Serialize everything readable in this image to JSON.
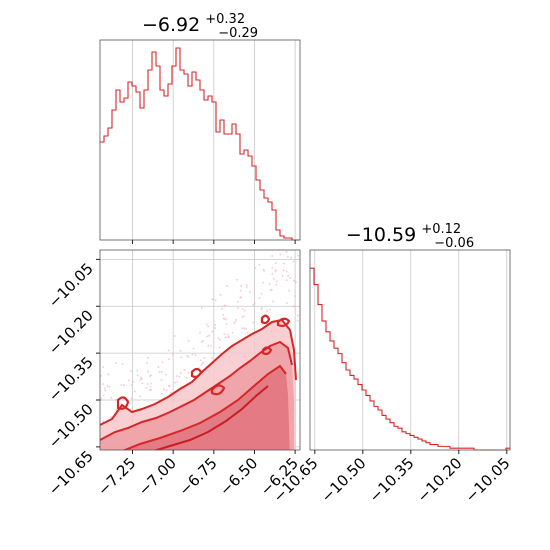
{
  "chart_data": [
    {
      "type": "histogram",
      "panel": "marginal-x",
      "title": {
        "main": "−6.92",
        "sup": "+0.32",
        "sub": "−0.29"
      },
      "xlim": [
        -7.45,
        -6.22
      ],
      "x_ticks": [
        -7.25,
        -7.0,
        -6.75,
        -6.5,
        -6.25
      ],
      "x_tick_labels": [
        "−7.25",
        "−7.00",
        "−6.75",
        "−6.50",
        "−6.25"
      ],
      "bin_start": -7.45,
      "bin_width": 0.0246,
      "counts": [
        49,
        52,
        56,
        65,
        75,
        69,
        71,
        79,
        77,
        74,
        66,
        75,
        85,
        94,
        87,
        75,
        72,
        78,
        87,
        96,
        85,
        83,
        77,
        84,
        80,
        75,
        70,
        72,
        69,
        54,
        60,
        53,
        53,
        58,
        53,
        43,
        45,
        42,
        37,
        30,
        25,
        21,
        19,
        15,
        5,
        2,
        1,
        1,
        0,
        0
      ],
      "ylim": [
        0,
        100
      ],
      "color": "#d62728"
    },
    {
      "type": "contour",
      "panel": "joint",
      "xlim": [
        -7.45,
        -6.22
      ],
      "ylim": [
        -10.66,
        -10.02
      ],
      "x_ticks": [
        -7.25,
        -7.0,
        -6.75,
        -6.5,
        -6.25
      ],
      "x_tick_labels": [
        "−7.25",
        "−7.00",
        "−6.75",
        "−6.50",
        "−6.25"
      ],
      "y_ticks": [
        -10.05,
        -10.2,
        -10.35,
        -10.5,
        -10.65
      ],
      "y_tick_labels": [
        "−10.05",
        "−10.20",
        "−10.35",
        "−10.50",
        "−10.65"
      ],
      "color": "#d62728"
    },
    {
      "type": "histogram",
      "panel": "marginal-y",
      "title": {
        "main": "−10.59",
        "sup": "+0.12",
        "sub": "−0.06"
      },
      "xlim": [
        -10.665,
        -10.04
      ],
      "x_ticks": [
        -10.65,
        -10.5,
        -10.35,
        -10.2,
        -10.05
      ],
      "x_tick_labels": [
        "−10.65",
        "−10.50",
        "−10.35",
        "−10.20",
        "−10.05"
      ],
      "bin_start": -10.665,
      "bin_width": 0.0125,
      "counts": [
        100,
        91,
        80,
        71,
        65,
        60,
        56,
        53,
        48,
        44,
        41,
        39,
        36,
        33,
        30,
        27,
        24,
        22,
        19,
        17,
        15,
        13,
        12,
        10,
        9,
        8,
        7,
        6,
        5,
        4,
        3,
        3,
        2,
        2,
        2,
        1,
        1,
        1,
        1,
        1,
        1,
        0,
        0,
        0,
        0,
        0,
        0,
        0,
        0,
        1
      ],
      "ylim": [
        0,
        110
      ],
      "color": "#d62728"
    }
  ]
}
